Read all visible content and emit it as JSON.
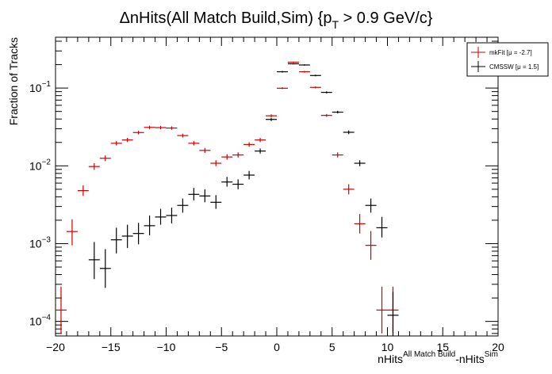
{
  "chart_data": {
    "type": "scatter",
    "title": "ΔnHits(All Match Build,Sim) {p",
    "title_sub": "T",
    "title_tail": " > 0.9 GeV/c}",
    "xlabel_main": "nHits",
    "xlabel_sup1": "All Match Build",
    "xlabel_mid": "-nHits",
    "xlabel_sup2": "Sim",
    "ylabel": "Fraction of Tracks",
    "xlim": [
      -20,
      20
    ],
    "ylog": true,
    "ylim": [
      6.5e-05,
      0.45
    ],
    "x_ticks": [
      -20,
      -15,
      -10,
      -5,
      0,
      5,
      10,
      15,
      20
    ],
    "x_tick_labels": [
      "−20",
      "−15",
      "−10",
      "−5",
      "0",
      "5",
      "10",
      "15",
      "20"
    ],
    "y_ticks": [
      {
        "value": 0.1,
        "base": "10",
        "exp": "−1"
      },
      {
        "value": 0.01,
        "base": "10",
        "exp": "−2"
      },
      {
        "value": 0.001,
        "base": "10",
        "exp": "−3"
      },
      {
        "value": 0.0001,
        "base": "10",
        "exp": "−4"
      }
    ],
    "legend_position": "top-right",
    "series": [
      {
        "name": "mkFit",
        "legend_label": "mkFit  [μ = -2.7]",
        "color": "#cc0000",
        "points": [
          {
            "x": -19.5,
            "y": 0.00014,
            "lo": 7e-05,
            "hi": 0.00028
          },
          {
            "x": -18.5,
            "y": 0.00143,
            "lo": 0.00095,
            "hi": 0.00205
          },
          {
            "x": -17.5,
            "y": 0.0048,
            "lo": 0.0041,
            "hi": 0.0056
          },
          {
            "x": -16.5,
            "y": 0.0098,
            "lo": 0.0089,
            "hi": 0.0108
          },
          {
            "x": -15.5,
            "y": 0.0125,
            "lo": 0.0115,
            "hi": 0.0136
          },
          {
            "x": -14.5,
            "y": 0.0195,
            "lo": 0.0183,
            "hi": 0.0208
          },
          {
            "x": -13.5,
            "y": 0.0215,
            "lo": 0.0202,
            "hi": 0.0229
          },
          {
            "x": -12.5,
            "y": 0.0268,
            "lo": 0.0254,
            "hi": 0.0283
          },
          {
            "x": -11.5,
            "y": 0.0312,
            "lo": 0.0297,
            "hi": 0.0328
          },
          {
            "x": -10.5,
            "y": 0.031,
            "lo": 0.0295,
            "hi": 0.0326
          },
          {
            "x": -9.5,
            "y": 0.0306,
            "lo": 0.0291,
            "hi": 0.0322
          },
          {
            "x": -8.5,
            "y": 0.0245,
            "lo": 0.0232,
            "hi": 0.0259
          },
          {
            "x": -7.5,
            "y": 0.0195,
            "lo": 0.0183,
            "hi": 0.0208
          },
          {
            "x": -6.5,
            "y": 0.0158,
            "lo": 0.0147,
            "hi": 0.017
          },
          {
            "x": -5.5,
            "y": 0.0108,
            "lo": 0.0099,
            "hi": 0.0118
          },
          {
            "x": -4.5,
            "y": 0.013,
            "lo": 0.012,
            "hi": 0.0141
          },
          {
            "x": -3.5,
            "y": 0.0138,
            "lo": 0.0128,
            "hi": 0.0149
          },
          {
            "x": -2.5,
            "y": 0.0188,
            "lo": 0.0176,
            "hi": 0.0201
          },
          {
            "x": -1.5,
            "y": 0.0215,
            "lo": 0.0202,
            "hi": 0.0229
          },
          {
            "x": -0.5,
            "y": 0.044,
            "lo": 0.0422,
            "hi": 0.0459
          },
          {
            "x": 0.5,
            "y": 0.0995,
            "lo": 0.0968,
            "hi": 0.1023
          },
          {
            "x": 1.5,
            "y": 0.215,
            "lo": 0.211,
            "hi": 0.219
          },
          {
            "x": 2.5,
            "y": 0.162,
            "lo": 0.158,
            "hi": 0.166
          },
          {
            "x": 3.5,
            "y": 0.102,
            "lo": 0.0993,
            "hi": 0.1048
          },
          {
            "x": 4.5,
            "y": 0.0445,
            "lo": 0.0427,
            "hi": 0.0464
          },
          {
            "x": 5.5,
            "y": 0.0138,
            "lo": 0.0128,
            "hi": 0.0149
          },
          {
            "x": 6.5,
            "y": 0.005,
            "lo": 0.0043,
            "hi": 0.0058
          },
          {
            "x": 7.5,
            "y": 0.0018,
            "lo": 0.00135,
            "hi": 0.0024
          },
          {
            "x": 8.5,
            "y": 0.00095,
            "lo": 0.00062,
            "hi": 0.00145
          },
          {
            "x": 9.5,
            "y": 0.00014,
            "lo": 7e-05,
            "hi": 0.00028
          },
          {
            "x": 10.5,
            "y": 0.00014,
            "lo": 7e-05,
            "hi": 0.00028
          }
        ]
      },
      {
        "name": "CMSSW",
        "legend_label": "CMSSW  [μ =  1.5]",
        "color": "#000000",
        "points": [
          {
            "x": -16.5,
            "y": 0.00062,
            "lo": 0.00035,
            "hi": 0.00105
          },
          {
            "x": -15.5,
            "y": 0.00048,
            "lo": 0.00027,
            "hi": 0.00085
          },
          {
            "x": -14.5,
            "y": 0.00112,
            "lo": 0.00075,
            "hi": 0.0016
          },
          {
            "x": -13.5,
            "y": 0.00125,
            "lo": 0.00088,
            "hi": 0.00175
          },
          {
            "x": -12.5,
            "y": 0.00135,
            "lo": 0.00098,
            "hi": 0.00185
          },
          {
            "x": -11.5,
            "y": 0.0017,
            "lo": 0.00128,
            "hi": 0.0023
          },
          {
            "x": -10.5,
            "y": 0.0022,
            "lo": 0.00175,
            "hi": 0.0028
          },
          {
            "x": -9.5,
            "y": 0.0023,
            "lo": 0.00182,
            "hi": 0.0029
          },
          {
            "x": -8.5,
            "y": 0.0031,
            "lo": 0.0025,
            "hi": 0.0038
          },
          {
            "x": -7.5,
            "y": 0.0043,
            "lo": 0.0036,
            "hi": 0.0052
          },
          {
            "x": -6.5,
            "y": 0.0041,
            "lo": 0.0034,
            "hi": 0.005
          },
          {
            "x": -5.5,
            "y": 0.0034,
            "lo": 0.0028,
            "hi": 0.0042
          },
          {
            "x": -4.5,
            "y": 0.0062,
            "lo": 0.0054,
            "hi": 0.0072
          },
          {
            "x": -3.5,
            "y": 0.0058,
            "lo": 0.005,
            "hi": 0.0067
          },
          {
            "x": -2.5,
            "y": 0.0076,
            "lo": 0.0067,
            "hi": 0.0086
          },
          {
            "x": -1.5,
            "y": 0.0155,
            "lo": 0.0144,
            "hi": 0.0167
          },
          {
            "x": -0.5,
            "y": 0.0395,
            "lo": 0.0377,
            "hi": 0.0414
          },
          {
            "x": 0.5,
            "y": 0.162,
            "lo": 0.158,
            "hi": 0.166
          },
          {
            "x": 1.5,
            "y": 0.205,
            "lo": 0.201,
            "hi": 0.209
          },
          {
            "x": 2.5,
            "y": 0.198,
            "lo": 0.194,
            "hi": 0.202
          },
          {
            "x": 3.5,
            "y": 0.145,
            "lo": 0.1415,
            "hi": 0.1485
          },
          {
            "x": 4.5,
            "y": 0.088,
            "lo": 0.0853,
            "hi": 0.0907
          },
          {
            "x": 5.5,
            "y": 0.049,
            "lo": 0.0471,
            "hi": 0.051
          },
          {
            "x": 6.5,
            "y": 0.027,
            "lo": 0.0256,
            "hi": 0.0285
          },
          {
            "x": 7.5,
            "y": 0.0108,
            "lo": 0.0099,
            "hi": 0.0118
          },
          {
            "x": 8.5,
            "y": 0.0031,
            "lo": 0.0025,
            "hi": 0.0038
          },
          {
            "x": 9.5,
            "y": 0.0016,
            "lo": 0.0012,
            "hi": 0.0022
          },
          {
            "x": 10.5,
            "y": 0.00012,
            "lo": 6e-05,
            "hi": 0.00024
          }
        ]
      }
    ]
  }
}
